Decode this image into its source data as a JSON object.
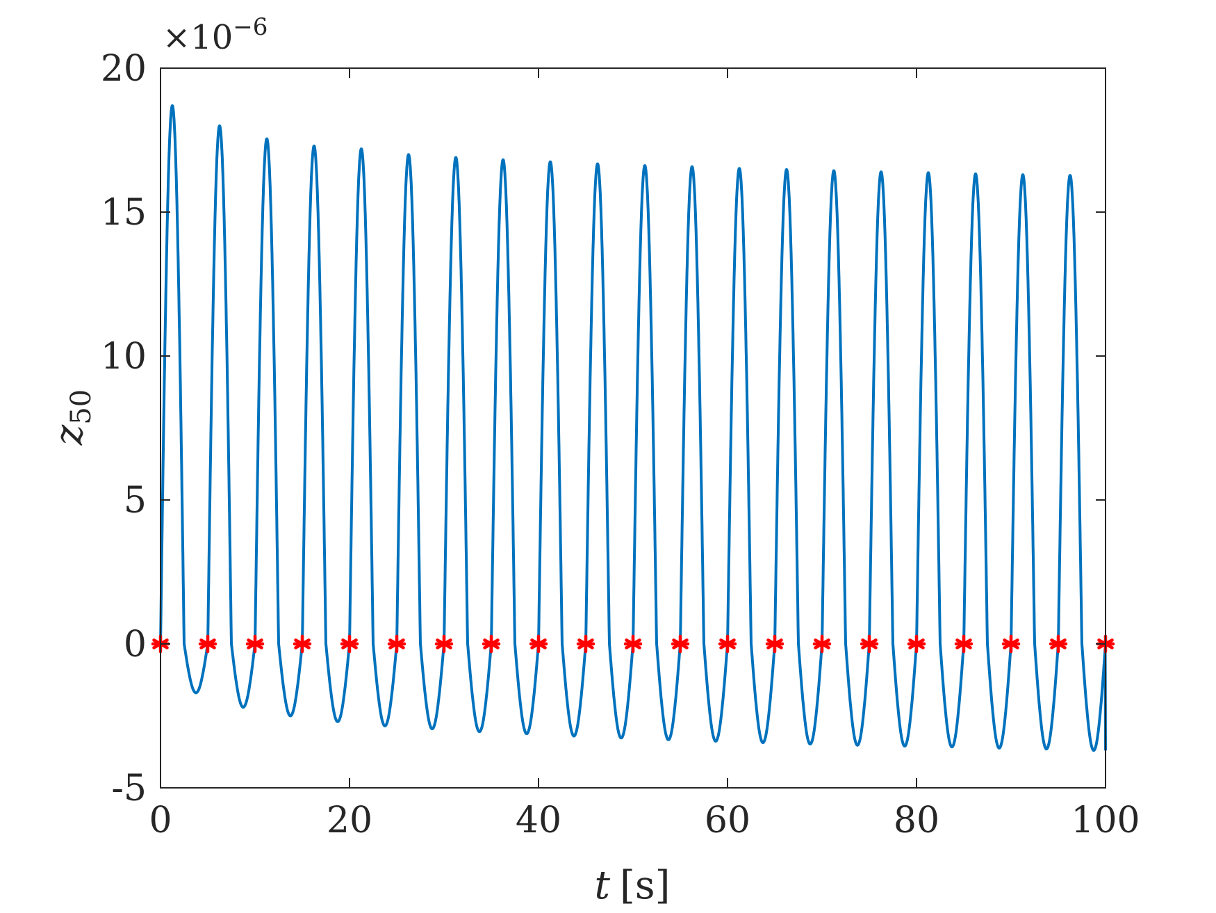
{
  "chart_data": {
    "type": "line",
    "title": "",
    "xlabel_var": "t",
    "xlabel_unit": "[s]",
    "ylabel_var": "z",
    "ylabel_sub": "50",
    "y_multiplier_base": "×10",
    "y_multiplier_exp": "−6",
    "xlim": [
      0,
      100
    ],
    "ylim": [
      -5,
      20
    ],
    "xticks": [
      0,
      20,
      40,
      60,
      80,
      100
    ],
    "xtick_labels": [
      "0",
      "20",
      "40",
      "60",
      "80",
      "100"
    ],
    "yticks": [
      -5,
      0,
      5,
      10,
      15,
      20
    ],
    "ytick_labels": [
      "-5",
      "0",
      "5",
      "10",
      "15",
      "20"
    ],
    "grid": false,
    "colors": {
      "line": "#0072BD",
      "markers": "#FF0000",
      "axes": "#262626"
    },
    "series": [
      {
        "style": "line",
        "period": 5,
        "peaks": [
          18.7,
          18.0,
          17.55,
          17.3,
          17.2,
          17.0,
          16.9,
          16.82,
          16.75,
          16.68,
          16.62,
          16.58,
          16.52,
          16.48,
          16.44,
          16.4,
          16.37,
          16.33,
          16.3,
          16.28
        ],
        "troughs": [
          -1.7,
          -2.2,
          -2.5,
          -2.7,
          -2.85,
          -2.95,
          -3.05,
          -3.12,
          -3.2,
          -3.27,
          -3.33,
          -3.38,
          -3.43,
          -3.48,
          -3.52,
          -3.55,
          -3.58,
          -3.62,
          -3.65,
          -3.7
        ]
      },
      {
        "style": "markers",
        "marker": "asterisk",
        "x": [
          0,
          5,
          10,
          15,
          20,
          25,
          30,
          35,
          40,
          45,
          50,
          55,
          60,
          65,
          70,
          75,
          80,
          85,
          90,
          95,
          100
        ],
        "y": [
          0,
          0,
          0,
          0,
          0,
          0,
          0,
          0,
          0,
          0,
          0,
          0,
          0,
          0,
          0,
          0,
          0,
          0,
          0,
          0,
          0
        ]
      }
    ]
  }
}
